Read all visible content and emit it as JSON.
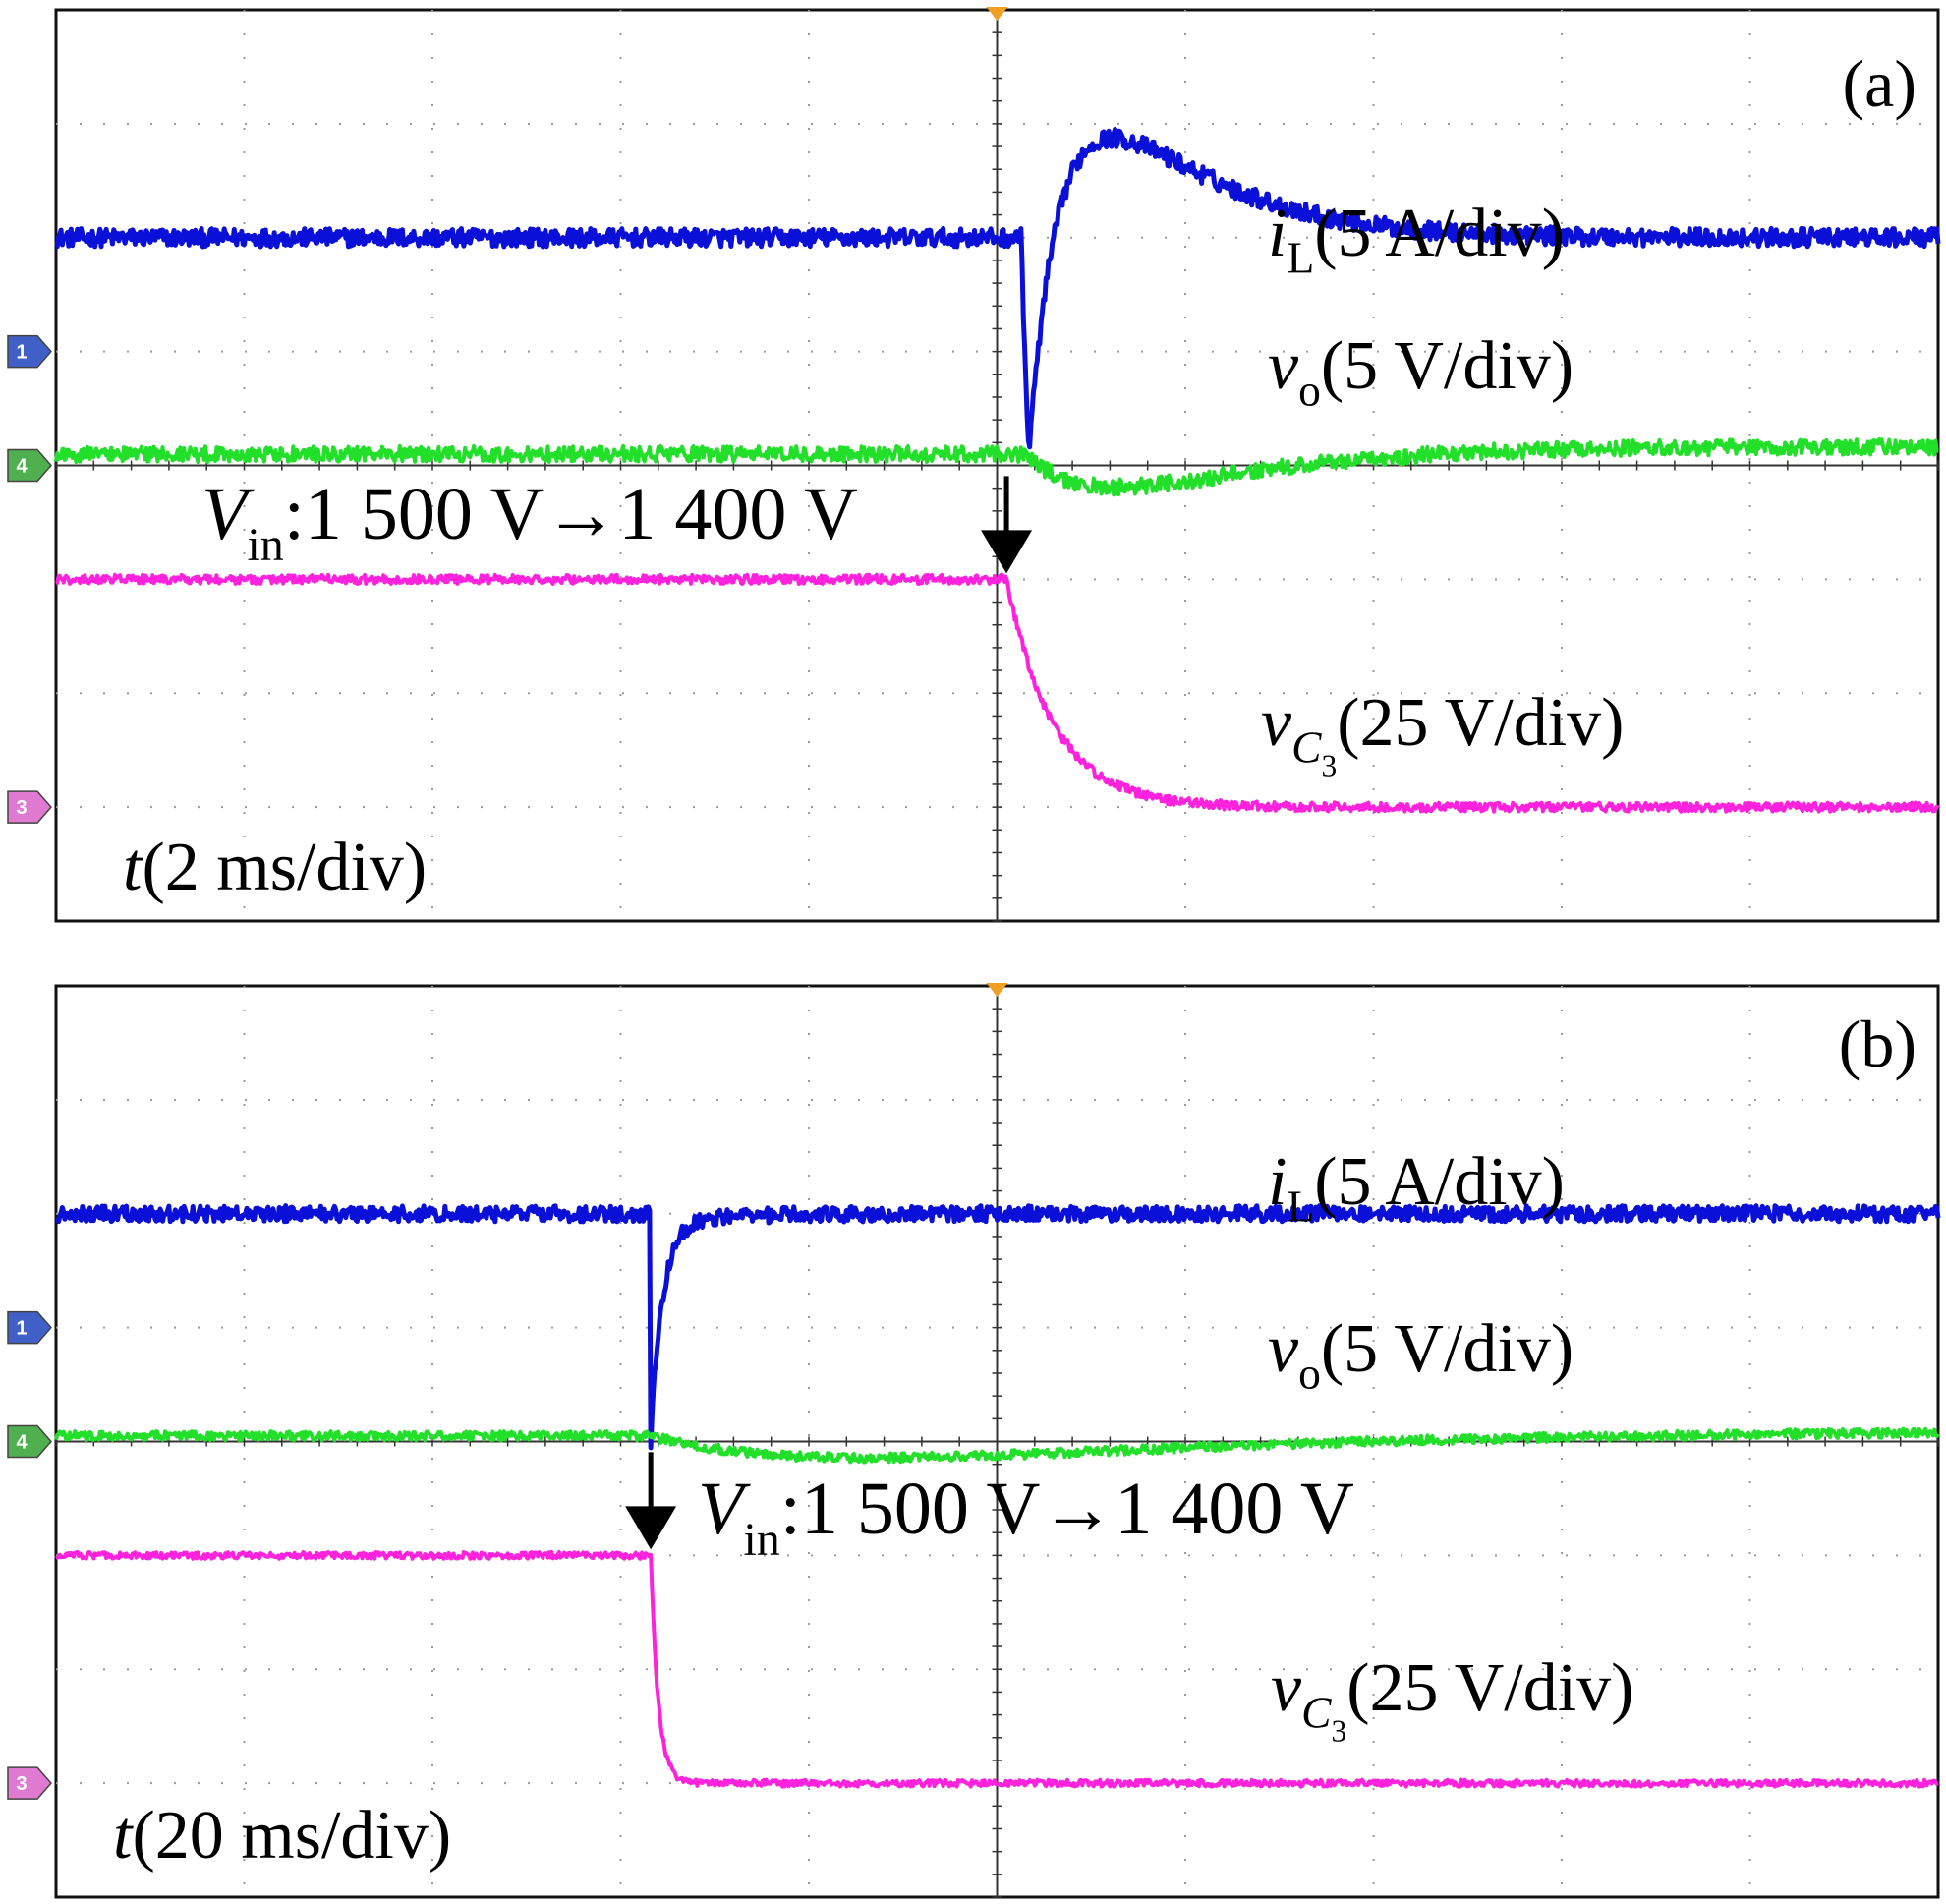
{
  "chart_data": [
    {
      "type": "line",
      "panel_label": "(a)",
      "time_scale": {
        "var": "t",
        "open": "(",
        "value": "2 ms/div",
        "close": ")"
      },
      "trigger_fraction": 0.5,
      "annotation": {
        "var": "V",
        "sub": "in",
        "text": ":1 500 V✖1 400 V",
        "from": "1 500 V",
        "to": "1 400 V",
        "arrow_at_fraction": 0.505
      },
      "series": [
        {
          "name": "iL",
          "var": "i",
          "sub": "L",
          "scale": "(5 A/div)",
          "marker": "1",
          "color": "#0a10d8",
          "marker_color": "#4060c8",
          "ref_div": 5.0,
          "level_div": 6.0,
          "event": {
            "type": "dip-overshoot",
            "at_fraction": 0.513,
            "dip_div": 2.8,
            "overshoot_div": 1.1,
            "tau_fraction": 0.05
          },
          "noise_div": 0.08
        },
        {
          "name": "vo",
          "var": "v",
          "sub": "o",
          "scale": "(5 V/div)",
          "marker": "4",
          "color": "#22e02a",
          "marker_color": "#50b050",
          "ref_div": 4.0,
          "level_div": 4.1,
          "event": {
            "type": "sag",
            "at_fraction": 0.515,
            "dip_div": 0.3,
            "tau_fraction": 0.05
          },
          "noise_div": 0.07
        },
        {
          "name": "vC3",
          "var": "v",
          "sub": "C",
          "subsub": "3",
          "scale": "(25 V/div)",
          "marker": "3",
          "color": "#ff22dd",
          "marker_color": "#e07ad0",
          "ref_div": 1.0,
          "level_div": 3.0,
          "final_div": 1.0,
          "event": {
            "type": "step",
            "at_fraction": 0.505,
            "tau_fraction": 0.025
          },
          "noise_div": 0.04
        }
      ]
    },
    {
      "type": "line",
      "panel_label": "(b)",
      "time_scale": {
        "var": "t",
        "open": "(",
        "value": "20 ms/div",
        "close": ")"
      },
      "trigger_fraction": 0.5,
      "annotation": {
        "var": "V",
        "sub": "in",
        "text": ":1 500 V✖1 400 V",
        "from": "1 500 V",
        "to": "1 400 V",
        "arrow_at_fraction": 0.316
      },
      "series": [
        {
          "name": "iL",
          "var": "i",
          "sub": "L",
          "scale": "(5 A/div)",
          "marker": "1",
          "color": "#0a10d8",
          "marker_color": "#4060c8",
          "ref_div": 5.0,
          "level_div": 6.0,
          "event": {
            "type": "spike",
            "at_fraction": 0.316,
            "dip_div": 2.0,
            "tau_fraction": 0.006
          },
          "noise_div": 0.07
        },
        {
          "name": "vo",
          "var": "v",
          "sub": "o",
          "scale": "(5 V/div)",
          "marker": "4",
          "color": "#22e02a",
          "marker_color": "#50b050",
          "ref_div": 4.0,
          "level_div": 4.05,
          "event": {
            "type": "sag",
            "at_fraction": 0.316,
            "dip_div": 0.2,
            "tau_fraction": 0.12
          },
          "noise_div": 0.04
        },
        {
          "name": "vC3",
          "var": "v",
          "sub": "C",
          "subsub": "3",
          "scale": "(25 V/div)",
          "marker": "3",
          "color": "#ff22dd",
          "marker_color": "#e07ad0",
          "ref_div": 1.0,
          "level_div": 3.0,
          "final_div": 1.0,
          "event": {
            "type": "step",
            "at_fraction": 0.316,
            "tau_fraction": 0.004
          },
          "noise_div": 0.03
        }
      ]
    }
  ]
}
